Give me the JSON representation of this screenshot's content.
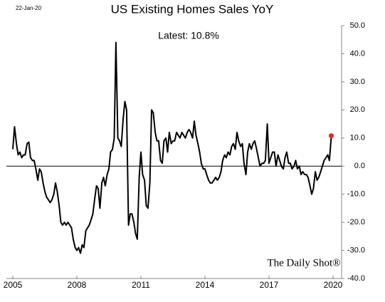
{
  "chart_data": {
    "type": "line",
    "title": "US Existing Homes Sales YoY",
    "date_label": "22-Jan-20",
    "annotation": "Latest:  10.8%",
    "watermark": "The Daily Shot®",
    "color": "#000000",
    "latest_color": "#e8262b",
    "x": [
      2005,
      2005.08,
      2005.17,
      2005.25,
      2005.33,
      2005.42,
      2005.5,
      2005.58,
      2005.67,
      2005.75,
      2005.83,
      2005.92,
      2006,
      2006.08,
      2006.17,
      2006.25,
      2006.33,
      2006.42,
      2006.5,
      2006.58,
      2006.67,
      2006.75,
      2006.83,
      2006.92,
      2007,
      2007.08,
      2007.17,
      2007.25,
      2007.33,
      2007.42,
      2007.5,
      2007.58,
      2007.67,
      2007.75,
      2007.83,
      2007.92,
      2008,
      2008.08,
      2008.17,
      2008.25,
      2008.33,
      2008.42,
      2008.5,
      2008.58,
      2008.67,
      2008.75,
      2008.83,
      2008.92,
      2009,
      2009.08,
      2009.17,
      2009.25,
      2009.33,
      2009.42,
      2009.5,
      2009.58,
      2009.67,
      2009.75,
      2009.83,
      2009.92,
      2010,
      2010.08,
      2010.17,
      2010.25,
      2010.33,
      2010.42,
      2010.5,
      2010.58,
      2010.67,
      2010.75,
      2010.83,
      2010.92,
      2011,
      2011.08,
      2011.17,
      2011.25,
      2011.33,
      2011.42,
      2011.5,
      2011.58,
      2011.67,
      2011.75,
      2011.83,
      2011.92,
      2012,
      2012.08,
      2012.17,
      2012.25,
      2012.33,
      2012.42,
      2012.5,
      2012.58,
      2012.67,
      2012.75,
      2012.83,
      2012.92,
      2013,
      2013.08,
      2013.17,
      2013.25,
      2013.33,
      2013.42,
      2013.5,
      2013.58,
      2013.67,
      2013.75,
      2013.83,
      2013.92,
      2014,
      2014.08,
      2014.17,
      2014.25,
      2014.33,
      2014.42,
      2014.5,
      2014.58,
      2014.67,
      2014.75,
      2014.83,
      2014.92,
      2015,
      2015.08,
      2015.17,
      2015.25,
      2015.33,
      2015.42,
      2015.5,
      2015.58,
      2015.67,
      2015.75,
      2015.83,
      2015.92,
      2016,
      2016.08,
      2016.17,
      2016.25,
      2016.33,
      2016.42,
      2016.5,
      2016.58,
      2016.67,
      2016.75,
      2016.83,
      2016.92,
      2017,
      2017.08,
      2017.17,
      2017.25,
      2017.33,
      2017.42,
      2017.5,
      2017.58,
      2017.67,
      2017.75,
      2017.83,
      2017.92,
      2018,
      2018.08,
      2018.17,
      2018.25,
      2018.33,
      2018.42,
      2018.5,
      2018.58,
      2018.67,
      2018.75,
      2018.83,
      2018.92,
      2019,
      2019.08,
      2019.17,
      2019.25,
      2019.33,
      2019.42,
      2019.5,
      2019.58,
      2019.67,
      2019.75,
      2019.83,
      2019.92
    ],
    "values": [
      6,
      14,
      8,
      4,
      5,
      3,
      4,
      4,
      8,
      8.5,
      3,
      2,
      2,
      -1,
      -5,
      -1,
      -2,
      -6,
      -9,
      -11,
      -12,
      -13,
      -12,
      -10,
      -6,
      -9,
      -14,
      -20,
      -21,
      -20,
      -21,
      -20,
      -21,
      -22,
      -26,
      -29,
      -30,
      -29,
      -31,
      -28,
      -29,
      -23,
      -22,
      -21,
      -19,
      -17,
      -12,
      -7,
      -8,
      -15,
      -6,
      -4,
      -7,
      -3,
      -1,
      5,
      6,
      10,
      44,
      10,
      9,
      7,
      17,
      23,
      20,
      -21,
      -17,
      -17,
      -20,
      -24,
      -26,
      -4,
      5,
      -3,
      -5,
      -14,
      -15,
      -6,
      20,
      19,
      12,
      9,
      9,
      2,
      1,
      9,
      10,
      5,
      12,
      8,
      9,
      9,
      12,
      11,
      10,
      12,
      11,
      10,
      12,
      13,
      12,
      10,
      16,
      11,
      8,
      5,
      1,
      -1,
      -1,
      -3,
      -5,
      -6,
      -6,
      -5,
      -4,
      -5,
      -4,
      -2,
      2,
      4,
      3,
      5,
      4,
      7,
      8,
      6,
      12,
      9,
      7,
      8,
      1,
      -3,
      5,
      8,
      6,
      8,
      9,
      6,
      3,
      0,
      1,
      1,
      2,
      15,
      1,
      3,
      5,
      5,
      0,
      4,
      2,
      0,
      -1,
      3,
      5,
      1,
      1,
      -1,
      0,
      2,
      -1,
      0,
      -3,
      -2,
      -3,
      -3,
      -4,
      -7,
      -10,
      -8,
      -2,
      -5,
      -4,
      -2,
      0,
      2,
      3,
      4,
      2,
      10.8
    ],
    "xlim": [
      2004.7,
      2020.4
    ],
    "xticks": [
      2005,
      2008,
      2011,
      2014,
      2017,
      2020
    ],
    "ylim": [
      -40,
      50
    ],
    "yticks": [
      {
        "value": -40,
        "label": "-40.0"
      },
      {
        "value": -30,
        "label": "-30.0"
      },
      {
        "value": -20,
        "label": "-20.0"
      },
      {
        "value": -10,
        "label": "-10.0"
      },
      {
        "value": 0,
        "label": "0.0"
      },
      {
        "value": 10,
        "label": "10.0"
      },
      {
        "value": 20,
        "label": "20.0"
      },
      {
        "value": 30,
        "label": "30.0"
      },
      {
        "value": 40,
        "label": "40.0"
      },
      {
        "value": 50,
        "label": "50.0"
      }
    ]
  }
}
